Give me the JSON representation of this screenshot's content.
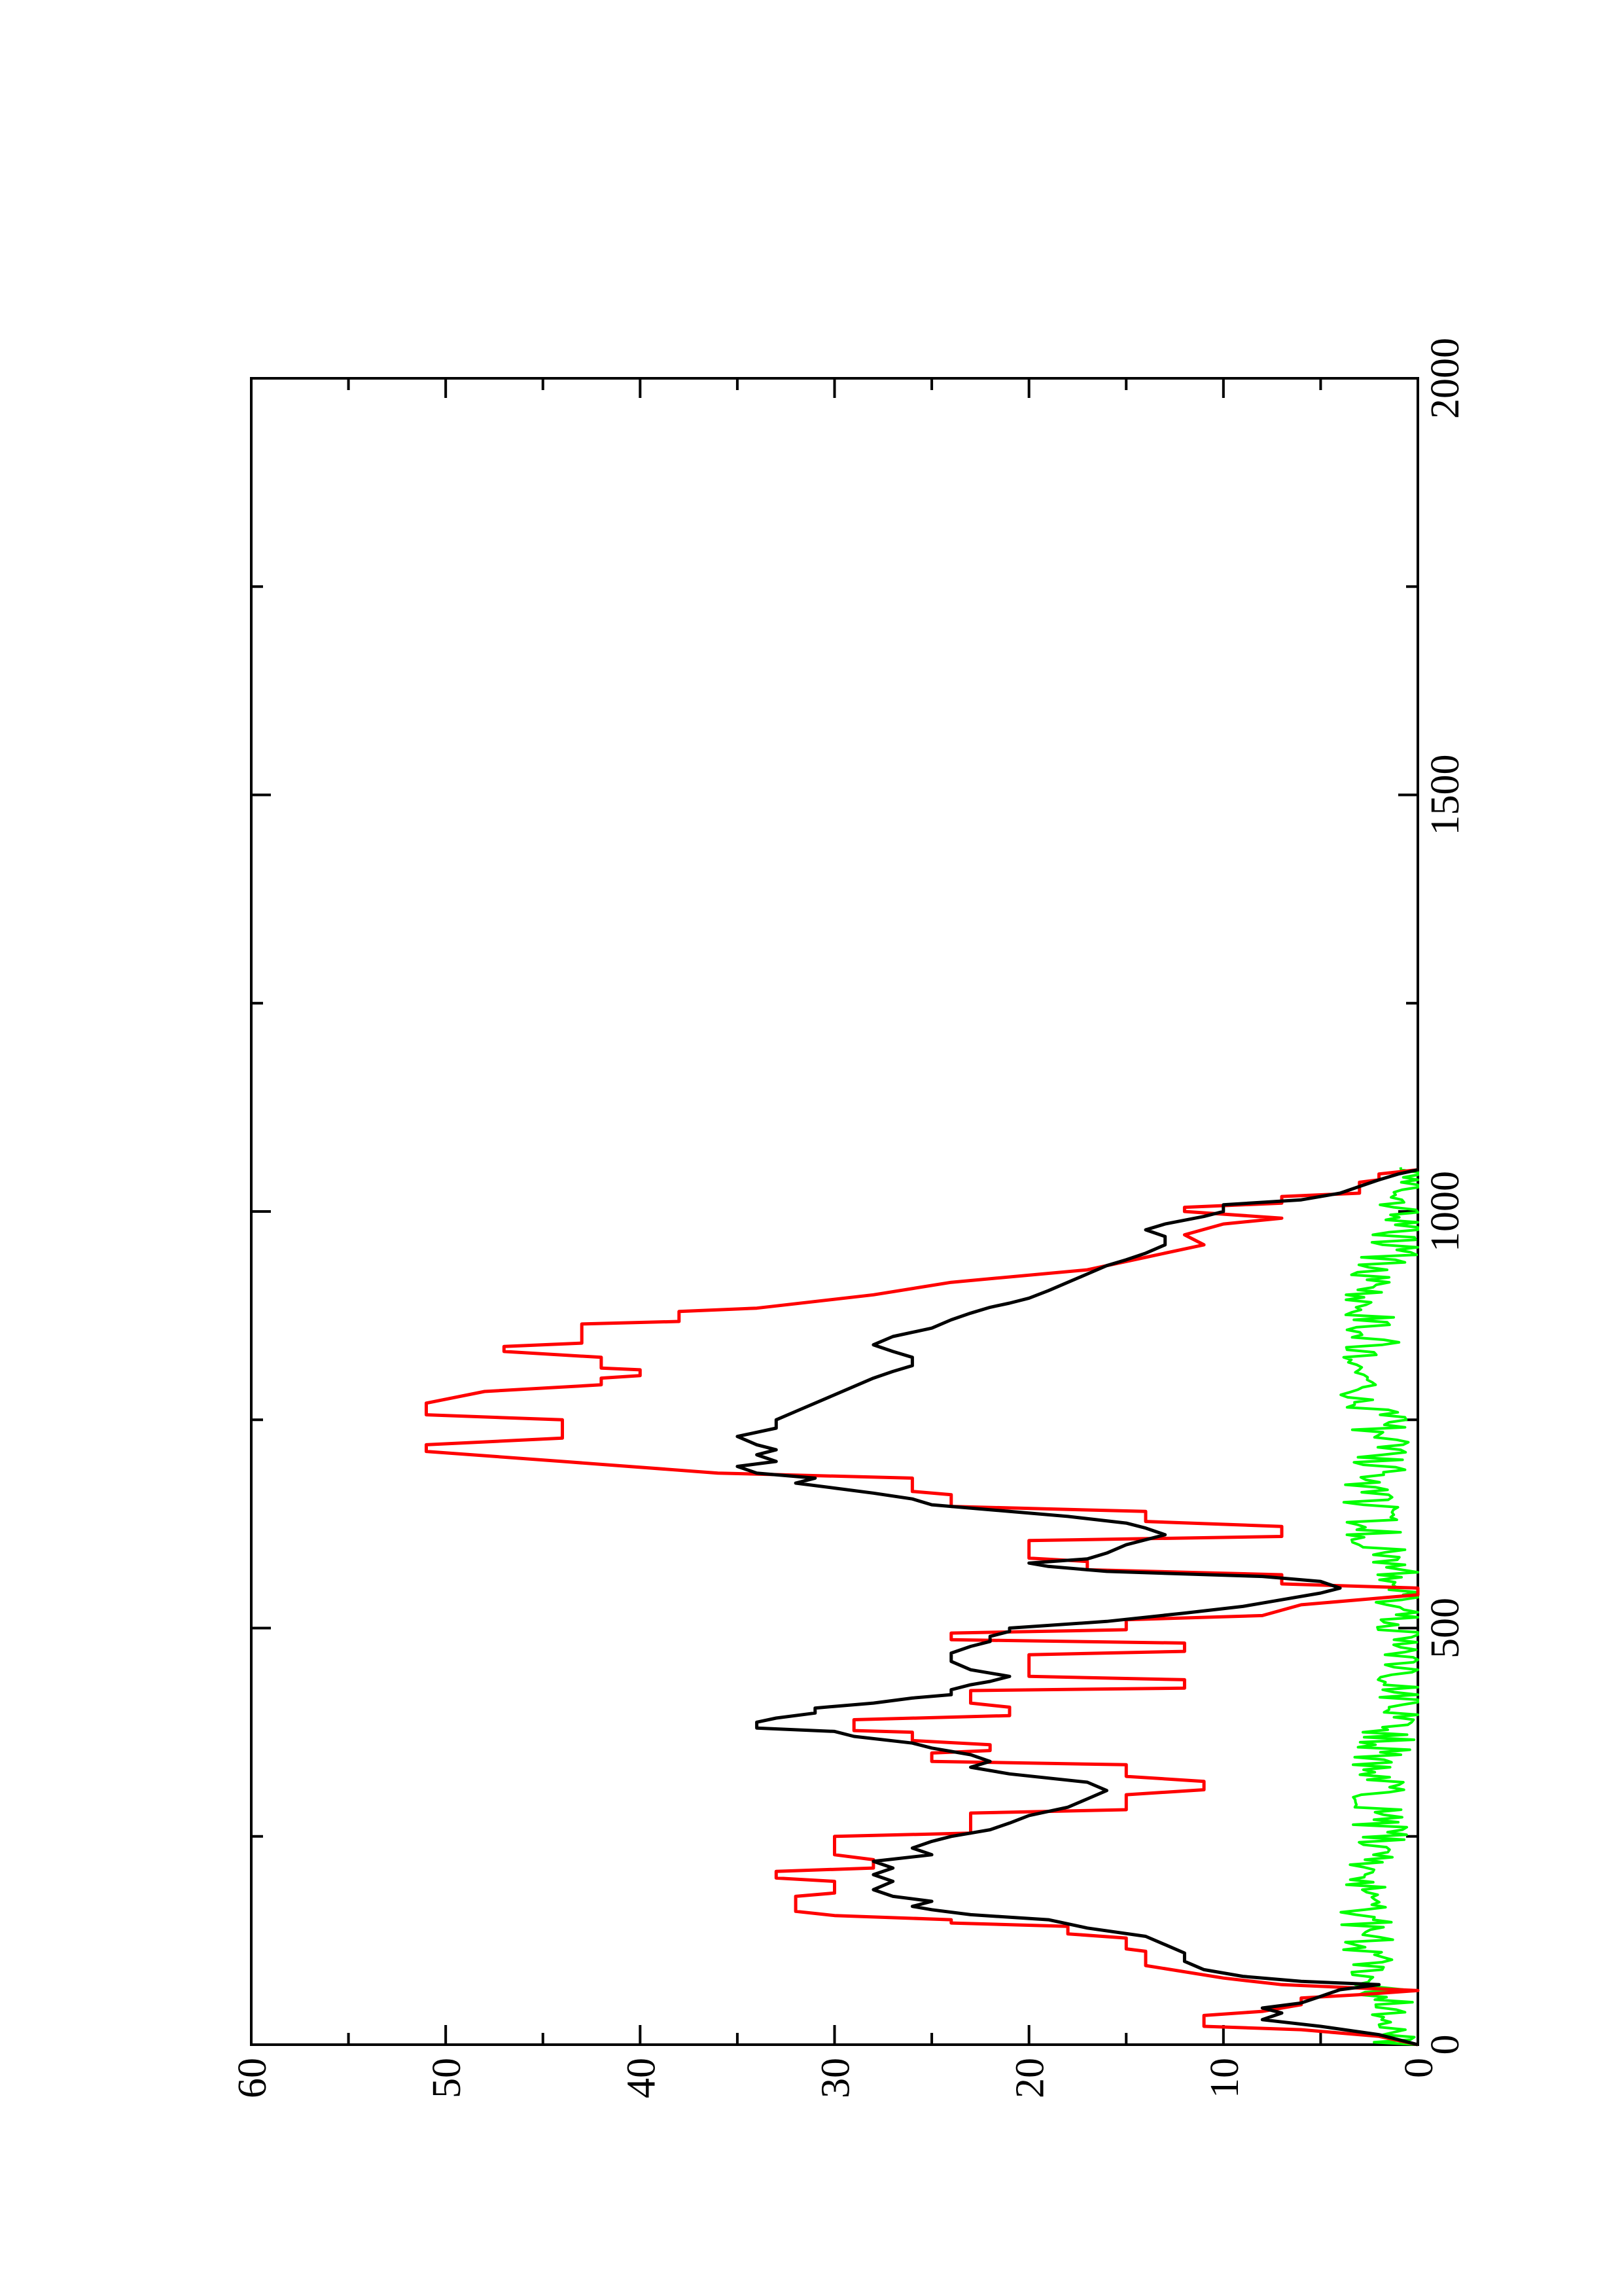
{
  "chart_data": {
    "type": "line",
    "orientation": "rotated 90 degrees counter-clockwise",
    "title": "",
    "xlabel": "",
    "ylabel": "",
    "xlim": [
      0,
      2000
    ],
    "ylim": [
      0,
      60
    ],
    "x_major_ticks": [
      0,
      500,
      1000,
      1500,
      2000
    ],
    "x_minor_ticks": [
      250,
      750,
      1250,
      1750
    ],
    "y_major_ticks": [
      0,
      10,
      20,
      30,
      40,
      50,
      60
    ],
    "y_minor_ticks": [
      5,
      15,
      25,
      35,
      45,
      55
    ],
    "x_tick_labels": [
      "0",
      "500",
      "1000",
      "1500",
      "2000"
    ],
    "y_tick_labels": [
      "0",
      "10",
      "20",
      "30",
      "40",
      "50",
      "60"
    ],
    "grid": false,
    "legend": "none",
    "series": [
      {
        "color": "#ff0000",
        "style": "step",
        "points": [
          [
            0,
            0
          ],
          [
            10,
            2
          ],
          [
            18,
            6
          ],
          [
            22,
            11
          ],
          [
            35,
            11
          ],
          [
            40,
            8
          ],
          [
            48,
            6
          ],
          [
            56,
            6
          ],
          [
            60,
            3
          ],
          [
            65,
            0
          ],
          [
            72,
            7
          ],
          [
            80,
            10
          ],
          [
            95,
            14
          ],
          [
            112,
            14
          ],
          [
            115,
            15
          ],
          [
            128,
            15
          ],
          [
            133,
            18
          ],
          [
            142,
            18
          ],
          [
            146,
            24
          ],
          [
            150,
            24
          ],
          [
            155,
            30
          ],
          [
            160,
            32
          ],
          [
            178,
            32
          ],
          [
            182,
            30
          ],
          [
            196,
            30
          ],
          [
            200,
            33
          ],
          [
            208,
            33
          ],
          [
            212,
            28
          ],
          [
            222,
            28
          ],
          [
            228,
            30
          ],
          [
            250,
            30
          ],
          [
            254,
            23
          ],
          [
            278,
            23
          ],
          [
            282,
            15
          ],
          [
            300,
            15
          ],
          [
            306,
            11
          ],
          [
            316,
            11
          ],
          [
            322,
            15
          ],
          [
            336,
            15
          ],
          [
            340,
            25
          ],
          [
            350,
            25
          ],
          [
            353,
            22
          ],
          [
            360,
            22
          ],
          [
            365,
            26
          ],
          [
            375,
            26
          ],
          [
            377,
            29
          ],
          [
            390,
            29
          ],
          [
            395,
            21
          ],
          [
            405,
            21
          ],
          [
            410,
            23
          ],
          [
            425,
            23
          ],
          [
            428,
            12
          ],
          [
            438,
            12
          ],
          [
            442,
            20
          ],
          [
            468,
            20
          ],
          [
            472,
            12
          ],
          [
            482,
            12
          ],
          [
            486,
            24
          ],
          [
            494,
            24
          ],
          [
            498,
            15
          ],
          [
            510,
            15
          ],
          [
            515,
            8
          ],
          [
            528,
            6
          ],
          [
            540,
            0
          ],
          [
            548,
            0
          ],
          [
            553,
            7
          ],
          [
            564,
            7
          ],
          [
            570,
            17
          ],
          [
            580,
            17
          ],
          [
            584,
            20
          ],
          [
            605,
            20
          ],
          [
            610,
            7
          ],
          [
            622,
            7
          ],
          [
            628,
            14
          ],
          [
            640,
            14
          ],
          [
            646,
            24
          ],
          [
            660,
            24
          ],
          [
            664,
            26
          ],
          [
            680,
            26
          ],
          [
            686,
            36
          ],
          [
            700,
            44
          ],
          [
            712,
            51
          ],
          [
            720,
            51
          ],
          [
            728,
            44
          ],
          [
            750,
            44
          ],
          [
            756,
            51
          ],
          [
            770,
            51
          ],
          [
            784,
            48
          ],
          [
            792,
            42
          ],
          [
            800,
            42
          ],
          [
            803,
            40
          ],
          [
            810,
            40
          ],
          [
            812,
            42
          ],
          [
            825,
            42
          ],
          [
            832,
            47
          ],
          [
            838,
            47
          ],
          [
            842,
            43
          ],
          [
            865,
            43
          ],
          [
            868,
            38
          ],
          [
            880,
            38
          ],
          [
            884,
            34
          ],
          [
            900,
            28
          ],
          [
            915,
            24
          ],
          [
            930,
            17
          ],
          [
            945,
            14
          ],
          [
            960,
            11
          ],
          [
            972,
            12
          ],
          [
            985,
            10
          ],
          [
            992,
            7
          ],
          [
            1000,
            12
          ],
          [
            1005,
            12
          ],
          [
            1010,
            7
          ],
          [
            1018,
            7
          ],
          [
            1022,
            3
          ],
          [
            1035,
            3
          ],
          [
            1038,
            2
          ],
          [
            1045,
            2
          ],
          [
            1050,
            0
          ]
        ]
      },
      {
        "color": "#000000",
        "style": "line",
        "points": [
          [
            0,
            0
          ],
          [
            12,
            2
          ],
          [
            22,
            5
          ],
          [
            30,
            8
          ],
          [
            38,
            7
          ],
          [
            44,
            8
          ],
          [
            50,
            6
          ],
          [
            58,
            5
          ],
          [
            66,
            4
          ],
          [
            72,
            2
          ],
          [
            76,
            6
          ],
          [
            82,
            9
          ],
          [
            90,
            11
          ],
          [
            100,
            12
          ],
          [
            110,
            12
          ],
          [
            120,
            13
          ],
          [
            130,
            14
          ],
          [
            140,
            17
          ],
          [
            150,
            19
          ],
          [
            156,
            23
          ],
          [
            162,
            25
          ],
          [
            166,
            26
          ],
          [
            172,
            25
          ],
          [
            178,
            27
          ],
          [
            186,
            28
          ],
          [
            196,
            27
          ],
          [
            204,
            28
          ],
          [
            212,
            27
          ],
          [
            220,
            28
          ],
          [
            228,
            25
          ],
          [
            236,
            26
          ],
          [
            244,
            25
          ],
          [
            250,
            24
          ],
          [
            258,
            22
          ],
          [
            266,
            21
          ],
          [
            275,
            20
          ],
          [
            285,
            18
          ],
          [
            295,
            17
          ],
          [
            305,
            16
          ],
          [
            315,
            17
          ],
          [
            325,
            21
          ],
          [
            333,
            23
          ],
          [
            340,
            22
          ],
          [
            348,
            23
          ],
          [
            356,
            25
          ],
          [
            362,
            26
          ],
          [
            370,
            29
          ],
          [
            376,
            30
          ],
          [
            380,
            34
          ],
          [
            387,
            34
          ],
          [
            392,
            33
          ],
          [
            398,
            31
          ],
          [
            404,
            31
          ],
          [
            410,
            28
          ],
          [
            416,
            26
          ],
          [
            420,
            24
          ],
          [
            426,
            24
          ],
          [
            432,
            23
          ],
          [
            436,
            22
          ],
          [
            442,
            21
          ],
          [
            450,
            23
          ],
          [
            460,
            24
          ],
          [
            470,
            24
          ],
          [
            478,
            23
          ],
          [
            484,
            22
          ],
          [
            490,
            22
          ],
          [
            496,
            21
          ],
          [
            500,
            21
          ],
          [
            508,
            16
          ],
          [
            518,
            12
          ],
          [
            526,
            9
          ],
          [
            534,
            7
          ],
          [
            542,
            5
          ],
          [
            548,
            4
          ],
          [
            556,
            5
          ],
          [
            562,
            8
          ],
          [
            568,
            16
          ],
          [
            574,
            19
          ],
          [
            578,
            20
          ],
          [
            583,
            17
          ],
          [
            590,
            16
          ],
          [
            600,
            15
          ],
          [
            612,
            13
          ],
          [
            620,
            14
          ],
          [
            626,
            15
          ],
          [
            634,
            18
          ],
          [
            640,
            21
          ],
          [
            648,
            25
          ],
          [
            655,
            26
          ],
          [
            662,
            28
          ],
          [
            668,
            30
          ],
          [
            674,
            32
          ],
          [
            680,
            31
          ],
          [
            686,
            34
          ],
          [
            694,
            35
          ],
          [
            700,
            33
          ],
          [
            708,
            34
          ],
          [
            714,
            33
          ],
          [
            720,
            34
          ],
          [
            730,
            35
          ],
          [
            740,
            33
          ],
          [
            750,
            33
          ],
          [
            760,
            32
          ],
          [
            770,
            31
          ],
          [
            780,
            30
          ],
          [
            790,
            29
          ],
          [
            800,
            28
          ],
          [
            808,
            27
          ],
          [
            815,
            26
          ],
          [
            825,
            26
          ],
          [
            832,
            27
          ],
          [
            840,
            28
          ],
          [
            850,
            27
          ],
          [
            860,
            25
          ],
          [
            870,
            24
          ],
          [
            878,
            23
          ],
          [
            885,
            22
          ],
          [
            890,
            21
          ],
          [
            896,
            20
          ],
          [
            905,
            19
          ],
          [
            915,
            18
          ],
          [
            925,
            17
          ],
          [
            935,
            16
          ],
          [
            942,
            15
          ],
          [
            950,
            14
          ],
          [
            960,
            13
          ],
          [
            970,
            13
          ],
          [
            978,
            14
          ],
          [
            985,
            13
          ],
          [
            994,
            11
          ],
          [
            1000,
            10
          ],
          [
            1008,
            10
          ],
          [
            1014,
            6
          ],
          [
            1022,
            4
          ],
          [
            1030,
            3
          ],
          [
            1038,
            2
          ],
          [
            1045,
            1
          ],
          [
            1050,
            0
          ]
        ]
      },
      {
        "color": "#00ff00",
        "style": "line",
        "generated": {
          "x_start": 0,
          "x_end": 1055,
          "x_step": 3,
          "baseline": 0.5,
          "noise_amplitude": 1.5,
          "bumps": [
            {
              "center": 150,
              "width": 120,
              "height": 2.2
            },
            {
              "center": 330,
              "width": 60,
              "height": 1.5
            },
            {
              "center": 640,
              "width": 80,
              "height": 2.0
            },
            {
              "center": 790,
              "width": 60,
              "height": 2.0
            },
            {
              "center": 900,
              "width": 60,
              "height": 2.0
            }
          ]
        }
      }
    ]
  }
}
